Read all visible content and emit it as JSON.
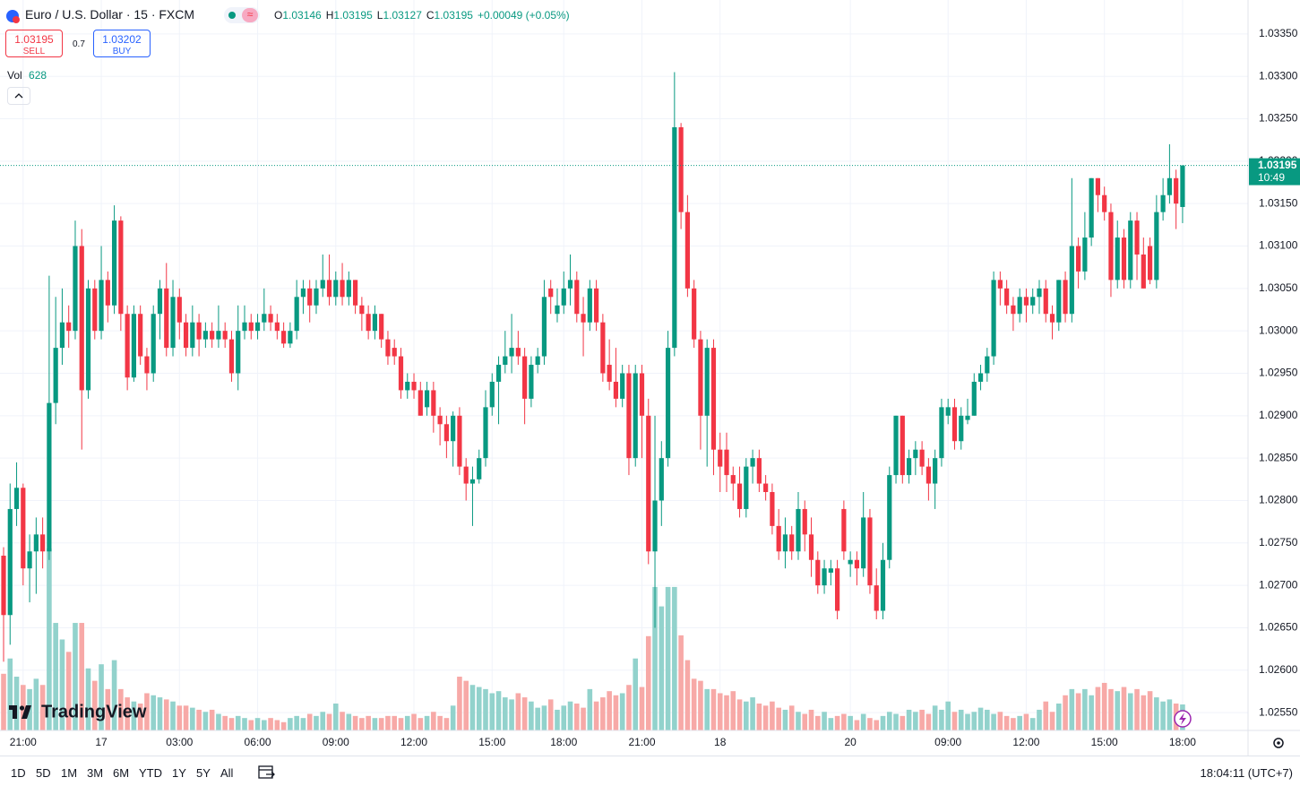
{
  "ui": {
    "symbol": "Euro / U.S. Dollar · 15 · FXCM",
    "ohlc": [
      {
        "label": "O",
        "value": 1.03146
      },
      {
        "label": "H",
        "value": 1.03195
      },
      {
        "label": "L",
        "value": 1.03127
      },
      {
        "label": "C",
        "value": 1.03195
      }
    ],
    "change": "+0.00049 (+0.05%)",
    "sell": {
      "price": 1.03195,
      "label": "SELL"
    },
    "spread": 0.7,
    "buy": {
      "price": 1.03202,
      "label": "BUY"
    },
    "vol_label": "Vol",
    "logo": "TradingView",
    "countdown": "10:49",
    "ranges": [
      "1D",
      "5D",
      "1M",
      "3M",
      "6M",
      "YTD",
      "1Y",
      "5Y",
      "All"
    ],
    "clock": "18:04:11 (UTC+7)"
  },
  "chart_data": {
    "type": "candlestick",
    "up_color": "#089981",
    "down_color": "#f23645",
    "volume_up_color": "#92d2cc",
    "volume_down_color": "#f7a9a7",
    "current_price": 1.03195,
    "grid": true,
    "ylim": [
      1.02529,
      1.0339
    ],
    "yticks": [
      {
        "value": 1.0255,
        "label": "1.02550"
      },
      {
        "value": 1.026,
        "label": "1.02600"
      },
      {
        "value": 1.0265,
        "label": "1.02650"
      },
      {
        "value": 1.027,
        "label": "1.02700"
      },
      {
        "value": 1.0275,
        "label": "1.02750"
      },
      {
        "value": 1.028,
        "label": "1.02800"
      },
      {
        "value": 1.0285,
        "label": "1.02850"
      },
      {
        "value": 1.029,
        "label": "1.02900"
      },
      {
        "value": 1.0295,
        "label": "1.02950"
      },
      {
        "value": 1.03,
        "label": "1.03000"
      },
      {
        "value": 1.0305,
        "label": "1.03050"
      },
      {
        "value": 1.031,
        "label": "1.03100"
      },
      {
        "value": 1.0315,
        "label": "1.03150"
      },
      {
        "value": 1.032,
        "label": "1.03200"
      },
      {
        "value": 1.0325,
        "label": "1.03250"
      },
      {
        "value": 1.033,
        "label": "1.03300"
      },
      {
        "value": 1.0335,
        "label": "1.03350"
      }
    ],
    "xlim": [
      -0.55,
      191.05
    ],
    "xticks": [
      {
        "value": 3,
        "label": "21:00"
      },
      {
        "value": 15,
        "label": "17"
      },
      {
        "value": 27,
        "label": "03:00"
      },
      {
        "value": 39,
        "label": "06:00"
      },
      {
        "value": 51,
        "label": "09:00"
      },
      {
        "value": 63,
        "label": "12:00"
      },
      {
        "value": 75,
        "label": "15:00"
      },
      {
        "value": 86,
        "label": "18:00"
      },
      {
        "value": 98,
        "label": "21:00"
      },
      {
        "value": 110,
        "label": "18"
      },
      {
        "value": 130,
        "label": "20"
      },
      {
        "value": 145,
        "label": "09:00"
      },
      {
        "value": 157,
        "label": "12:00"
      },
      {
        "value": 169,
        "label": "15:00"
      },
      {
        "value": 181,
        "label": "18:00"
      }
    ],
    "candles": [
      [
        1.02735,
        1.02745,
        1.0261,
        1.02665
      ],
      [
        1.02665,
        1.0282,
        1.0263,
        1.0279
      ],
      [
        1.0279,
        1.02845,
        1.0277,
        1.02815
      ],
      [
        1.02815,
        1.0282,
        1.027,
        1.0272
      ],
      [
        1.0272,
        1.0276,
        1.0268,
        1.0274
      ],
      [
        1.0274,
        1.0278,
        1.0269,
        1.0276
      ],
      [
        1.0276,
        1.0278,
        1.0272,
        1.0274
      ],
      [
        1.0274,
        1.03065,
        1.0273,
        1.02915
      ],
      [
        1.02915,
        1.0304,
        1.0289,
        1.0298
      ],
      [
        1.0298,
        1.0305,
        1.0296,
        1.0301
      ],
      [
        1.0301,
        1.0303,
        1.0298,
        1.03
      ],
      [
        1.03,
        1.0313,
        1.0299,
        1.031
      ],
      [
        1.031,
        1.0312,
        1.0286,
        1.0293
      ],
      [
        1.0293,
        1.0306,
        1.0292,
        1.0305
      ],
      [
        1.0305,
        1.0306,
        1.0299,
        1.03
      ],
      [
        1.03,
        1.031,
        1.0299,
        1.0306
      ],
      [
        1.0306,
        1.0307,
        1.0301,
        1.0303
      ],
      [
        1.0303,
        1.03148,
        1.0302,
        1.0313
      ],
      [
        1.0313,
        1.03135,
        1.03,
        1.0302
      ],
      [
        1.0302,
        1.0303,
        1.0293,
        1.02945
      ],
      [
        1.02945,
        1.0303,
        1.0294,
        1.0302
      ],
      [
        1.0302,
        1.0303,
        1.0296,
        1.0297
      ],
      [
        1.0297,
        1.0298,
        1.0293,
        1.0295
      ],
      [
        1.0295,
        1.0303,
        1.0294,
        1.0302
      ],
      [
        1.0302,
        1.0306,
        1.0299,
        1.0305
      ],
      [
        1.0305,
        1.0308,
        1.0297,
        1.0298
      ],
      [
        1.0298,
        1.0306,
        1.0297,
        1.0304
      ],
      [
        1.0304,
        1.0305,
        1.0299,
        1.0301
      ],
      [
        1.0301,
        1.0302,
        1.0297,
        1.0298
      ],
      [
        1.0298,
        1.0303,
        1.0297,
        1.0301
      ],
      [
        1.0301,
        1.0302,
        1.0297,
        1.0299
      ],
      [
        1.0299,
        1.0301,
        1.0298,
        1.03
      ],
      [
        1.03,
        1.0301,
        1.0298,
        1.0299
      ],
      [
        1.0299,
        1.0303,
        1.0298,
        1.03
      ],
      [
        1.03,
        1.0301,
        1.0298,
        1.0299
      ],
      [
        1.0299,
        1.03,
        1.0294,
        1.0295
      ],
      [
        1.0295,
        1.0303,
        1.0293,
        1.03
      ],
      [
        1.03,
        1.0303,
        1.0299,
        1.0301
      ],
      [
        1.0301,
        1.0302,
        1.0299,
        1.03
      ],
      [
        1.03,
        1.0302,
        1.0299,
        1.0301
      ],
      [
        1.0301,
        1.0305,
        1.03,
        1.0302
      ],
      [
        1.0302,
        1.0303,
        1.03,
        1.0301
      ],
      [
        1.0301,
        1.0302,
        1.0299,
        1.03
      ],
      [
        1.03,
        1.0301,
        1.0298,
        1.02985
      ],
      [
        1.02985,
        1.0301,
        1.0298,
        1.03
      ],
      [
        1.03,
        1.0306,
        1.0299,
        1.0304
      ],
      [
        1.0304,
        1.0306,
        1.0302,
        1.0305
      ],
      [
        1.0305,
        1.0306,
        1.0301,
        1.0303
      ],
      [
        1.0303,
        1.0306,
        1.0302,
        1.0305
      ],
      [
        1.0305,
        1.0309,
        1.0304,
        1.0306
      ],
      [
        1.0306,
        1.0309,
        1.0303,
        1.0304
      ],
      [
        1.0304,
        1.0307,
        1.0303,
        1.0306
      ],
      [
        1.0306,
        1.0308,
        1.0303,
        1.0304
      ],
      [
        1.0304,
        1.0307,
        1.0303,
        1.0306
      ],
      [
        1.0306,
        1.0306,
        1.0302,
        1.0303
      ],
      [
        1.0303,
        1.0304,
        1.03,
        1.0302
      ],
      [
        1.0302,
        1.0303,
        1.0299,
        1.03
      ],
      [
        1.03,
        1.0303,
        1.0299,
        1.0302
      ],
      [
        1.0302,
        1.0302,
        1.0298,
        1.0299
      ],
      [
        1.0299,
        1.03,
        1.0296,
        1.0297
      ],
      [
        1.0298,
        1.0299,
        1.0296,
        1.0297
      ],
      [
        1.0297,
        1.0298,
        1.0292,
        1.0293
      ],
      [
        1.0293,
        1.0295,
        1.0292,
        1.0294
      ],
      [
        1.0294,
        1.0295,
        1.0292,
        1.0293
      ],
      [
        1.0293,
        1.0294,
        1.029,
        1.029
      ],
      [
        1.0291,
        1.0294,
        1.029,
        1.0293
      ],
      [
        1.0293,
        1.0294,
        1.0288,
        1.029
      ],
      [
        1.029,
        1.0291,
        1.02865,
        1.0289
      ],
      [
        1.0289,
        1.029,
        1.0285,
        1.0287
      ],
      [
        1.0287,
        1.02905,
        1.0284,
        1.029
      ],
      [
        1.029,
        1.0291,
        1.0283,
        1.0284
      ],
      [
        1.0284,
        1.0285,
        1.028,
        1.0282
      ],
      [
        1.0282,
        1.0284,
        1.0277,
        1.02825
      ],
      [
        1.02825,
        1.0286,
        1.0282,
        1.0285
      ],
      [
        1.0285,
        1.0293,
        1.0284,
        1.0291
      ],
      [
        1.0291,
        1.0295,
        1.029,
        1.0294
      ],
      [
        1.0294,
        1.0297,
        1.0289,
        1.0296
      ],
      [
        1.0296,
        1.03,
        1.0295,
        1.0297
      ],
      [
        1.0297,
        1.0302,
        1.0295,
        1.0298
      ],
      [
        1.0298,
        1.03,
        1.0296,
        1.0297
      ],
      [
        1.0297,
        1.0298,
        1.0289,
        1.0292
      ],
      [
        1.0292,
        1.0297,
        1.0291,
        1.0296
      ],
      [
        1.0296,
        1.0298,
        1.0295,
        1.0297
      ],
      [
        1.0297,
        1.0306,
        1.0296,
        1.0304
      ],
      [
        1.0305,
        1.0306,
        1.0302,
        1.0304
      ],
      [
        1.0302,
        1.0305,
        1.0301,
        1.0303
      ],
      [
        1.0303,
        1.0307,
        1.0302,
        1.0305
      ],
      [
        1.0305,
        1.0309,
        1.0303,
        1.0306
      ],
      [
        1.0306,
        1.0307,
        1.0301,
        1.0302
      ],
      [
        1.0302,
        1.0304,
        1.0297,
        1.0301
      ],
      [
        1.0301,
        1.0306,
        1.03,
        1.0305
      ],
      [
        1.0305,
        1.0306,
        1.03,
        1.0301
      ],
      [
        1.0301,
        1.0302,
        1.0294,
        1.0295
      ],
      [
        1.0296,
        1.0299,
        1.0293,
        1.0294
      ],
      [
        1.0294,
        1.0298,
        1.0291,
        1.0292
      ],
      [
        1.0292,
        1.0296,
        1.0291,
        1.0295
      ],
      [
        1.0295,
        1.0296,
        1.0283,
        1.0285
      ],
      [
        1.0285,
        1.0296,
        1.0284,
        1.0295
      ],
      [
        1.0295,
        1.0296,
        1.0285,
        1.029
      ],
      [
        1.029,
        1.0292,
        1.02725,
        1.0274
      ],
      [
        1.0274,
        1.029,
        1.0265,
        1.028
      ],
      [
        1.028,
        1.0287,
        1.0277,
        1.0285
      ],
      [
        1.0285,
        1.03,
        1.0284,
        1.0298
      ],
      [
        1.0298,
        1.03305,
        1.0297,
        1.0324
      ],
      [
        1.0324,
        1.03245,
        1.0312,
        1.0314
      ],
      [
        1.0314,
        1.0316,
        1.0304,
        1.0305
      ],
      [
        1.0305,
        1.0306,
        1.0298,
        1.0299
      ],
      [
        1.0299,
        1.03,
        1.0286,
        1.029
      ],
      [
        1.029,
        1.0299,
        1.0284,
        1.0298
      ],
      [
        1.0298,
        1.0299,
        1.0283,
        1.0286
      ],
      [
        1.0286,
        1.0288,
        1.0281,
        1.0284
      ],
      [
        1.0286,
        1.0288,
        1.0281,
        1.0283
      ],
      [
        1.0283,
        1.0284,
        1.028,
        1.0282
      ],
      [
        1.0282,
        1.0284,
        1.0278,
        1.0279
      ],
      [
        1.0279,
        1.0285,
        1.0278,
        1.0284
      ],
      [
        1.0284,
        1.0286,
        1.0282,
        1.0285
      ],
      [
        1.0285,
        1.0286,
        1.0281,
        1.0282
      ],
      [
        1.0282,
        1.0283,
        1.028,
        1.0281
      ],
      [
        1.0281,
        1.0282,
        1.0276,
        1.0277
      ],
      [
        1.0277,
        1.0279,
        1.0273,
        1.0274
      ],
      [
        1.0274,
        1.0278,
        1.0272,
        1.0276
      ],
      [
        1.0276,
        1.0277,
        1.0273,
        1.0274
      ],
      [
        1.0274,
        1.0281,
        1.0273,
        1.0279
      ],
      [
        1.0279,
        1.028,
        1.0274,
        1.0276
      ],
      [
        1.0276,
        1.0278,
        1.0271,
        1.0273
      ],
      [
        1.0273,
        1.0274,
        1.0269,
        1.027
      ],
      [
        1.027,
        1.0273,
        1.0269,
        1.0272
      ],
      [
        1.02715,
        1.0273,
        1.027,
        1.0272
      ],
      [
        1.0272,
        1.0273,
        1.0266,
        1.0267
      ],
      [
        1.0279,
        1.028,
        1.0273,
        1.0274
      ],
      [
        1.02725,
        1.0274,
        1.0271,
        1.0273
      ],
      [
        1.0273,
        1.0274,
        1.027,
        1.0272
      ],
      [
        1.0272,
        1.0281,
        1.0271,
        1.0278
      ],
      [
        1.0278,
        1.0279,
        1.0269,
        1.027
      ],
      [
        1.027,
        1.0272,
        1.0266,
        1.0267
      ],
      [
        1.0267,
        1.0275,
        1.0266,
        1.0273
      ],
      [
        1.0273,
        1.0284,
        1.0272,
        1.0283
      ],
      [
        1.0283,
        1.029,
        1.0282,
        1.029
      ],
      [
        1.029,
        1.029,
        1.0282,
        1.0283
      ],
      [
        1.0283,
        1.0286,
        1.0282,
        1.0285
      ],
      [
        1.0285,
        1.0287,
        1.0283,
        1.0286
      ],
      [
        1.0286,
        1.0287,
        1.0283,
        1.0284
      ],
      [
        1.0284,
        1.0285,
        1.028,
        1.0282
      ],
      [
        1.0282,
        1.0286,
        1.0279,
        1.0285
      ],
      [
        1.0285,
        1.0292,
        1.0284,
        1.0291
      ],
      [
        1.029,
        1.0292,
        1.0289,
        1.0291
      ],
      [
        1.0291,
        1.0292,
        1.0286,
        1.0287
      ],
      [
        1.0287,
        1.0291,
        1.0286,
        1.029
      ],
      [
        1.02895,
        1.0292,
        1.0289,
        1.029
      ],
      [
        1.029,
        1.0295,
        1.029,
        1.0294
      ],
      [
        1.0294,
        1.0296,
        1.0293,
        1.0295
      ],
      [
        1.0295,
        1.0298,
        1.0294,
        1.0297
      ],
      [
        1.0297,
        1.0307,
        1.0296,
        1.0306
      ],
      [
        1.0306,
        1.0307,
        1.0303,
        1.0305
      ],
      [
        1.0305,
        1.0306,
        1.0302,
        1.0303
      ],
      [
        1.0303,
        1.0304,
        1.03,
        1.0302
      ],
      [
        1.0302,
        1.0305,
        1.0301,
        1.0304
      ],
      [
        1.0304,
        1.0305,
        1.0301,
        1.0303
      ],
      [
        1.0303,
        1.0305,
        1.0302,
        1.0304
      ],
      [
        1.0304,
        1.0306,
        1.0302,
        1.0305
      ],
      [
        1.0305,
        1.0306,
        1.0301,
        1.0302
      ],
      [
        1.0302,
        1.0303,
        1.0299,
        1.0301
      ],
      [
        1.0301,
        1.0306,
        1.03,
        1.0306
      ],
      [
        1.0306,
        1.0307,
        1.0301,
        1.0302
      ],
      [
        1.0302,
        1.0318,
        1.0301,
        1.031
      ],
      [
        1.031,
        1.0311,
        1.0305,
        1.0307
      ],
      [
        1.0307,
        1.0314,
        1.0306,
        1.0311
      ],
      [
        1.0311,
        1.0318,
        1.031,
        1.0318
      ],
      [
        1.0318,
        1.0318,
        1.0314,
        1.0316
      ],
      [
        1.0316,
        1.0317,
        1.0313,
        1.0314
      ],
      [
        1.0314,
        1.0315,
        1.0304,
        1.0306
      ],
      [
        1.0306,
        1.0313,
        1.0305,
        1.0311
      ],
      [
        1.0311,
        1.0312,
        1.0305,
        1.0306
      ],
      [
        1.0306,
        1.0314,
        1.0305,
        1.0313
      ],
      [
        1.0313,
        1.0314,
        1.0306,
        1.0309
      ],
      [
        1.0309,
        1.0311,
        1.0305,
        1.0305
      ],
      [
        1.031,
        1.0311,
        1.03055,
        1.0306
      ],
      [
        1.0306,
        1.0316,
        1.0305,
        1.0314
      ],
      [
        1.0314,
        1.0318,
        1.0313,
        1.0316
      ],
      [
        1.0316,
        1.0322,
        1.0315,
        1.0318
      ],
      [
        1.0318,
        1.0319,
        1.0312,
        1.0315
      ],
      [
        1.03146,
        1.03195,
        1.03127,
        1.03195
      ]
    ],
    "volume": [
      1370,
      1740,
      1300,
      1100,
      1000,
      1250,
      1100,
      4400,
      2600,
      2200,
      1900,
      2600,
      2600,
      1500,
      1200,
      1600,
      1000,
      1700,
      1000,
      800,
      700,
      650,
      900,
      850,
      800,
      750,
      700,
      600,
      600,
      550,
      500,
      450,
      500,
      400,
      350,
      300,
      350,
      300,
      250,
      300,
      250,
      300,
      250,
      200,
      300,
      350,
      300,
      400,
      350,
      450,
      400,
      650,
      450,
      400,
      350,
      300,
      350,
      300,
      300,
      350,
      350,
      300,
      350,
      400,
      300,
      350,
      450,
      350,
      300,
      600,
      1300,
      1200,
      1100,
      1050,
      1000,
      900,
      950,
      800,
      750,
      900,
      800,
      700,
      550,
      600,
      750,
      500,
      600,
      700,
      650,
      550,
      1000,
      700,
      800,
      950,
      850,
      900,
      1100,
      1740,
      1050,
      2280,
      3470,
      3000,
      3470,
      3470,
      2300,
      1700,
      1250,
      1200,
      1000,
      1000,
      900,
      850,
      950,
      750,
      700,
      800,
      650,
      600,
      700,
      550,
      500,
      600,
      450,
      400,
      500,
      350,
      450,
      300,
      350,
      400,
      350,
      250,
      400,
      300,
      250,
      350,
      450,
      400,
      350,
      500,
      450,
      500,
      400,
      600,
      500,
      700,
      450,
      500,
      400,
      450,
      550,
      500,
      400,
      450,
      350,
      300,
      350,
      400,
      300,
      500,
      700,
      450,
      650,
      850,
      1000,
      900,
      1000,
      850,
      1050,
      1150,
      1000,
      950,
      1050,
      900,
      1000,
      850,
      950,
      800,
      700,
      750,
      650,
      628
    ]
  }
}
